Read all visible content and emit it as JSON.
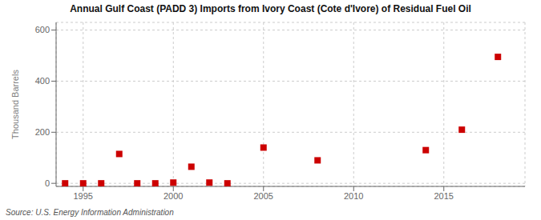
{
  "chart_data": {
    "type": "scatter",
    "title": "Annual Gulf Coast (PADD 3) Imports from Ivory Coast (Cote d'Ivore) of Residual Fuel Oil",
    "y_label": "Thousand Barrels",
    "annotations": [
      "Source: U.S. Energy Information Administration"
    ],
    "x": [
      1994,
      1995,
      1996,
      1997,
      1998,
      1999,
      2000,
      2001,
      2002,
      2003,
      2005,
      2008,
      2014,
      2016,
      2018
    ],
    "values": [
      0,
      0,
      0,
      115,
      0,
      0,
      3,
      65,
      3,
      0,
      140,
      90,
      130,
      210,
      495
    ],
    "color": "#cc0000",
    "marker": "square",
    "xlim": [
      1993.5,
      2019.5
    ],
    "ylim": [
      -12,
      630
    ],
    "xticks": [
      1995,
      2000,
      2005,
      2010,
      2015
    ],
    "yticks": [
      0,
      200,
      400,
      600
    ],
    "grid": true
  }
}
